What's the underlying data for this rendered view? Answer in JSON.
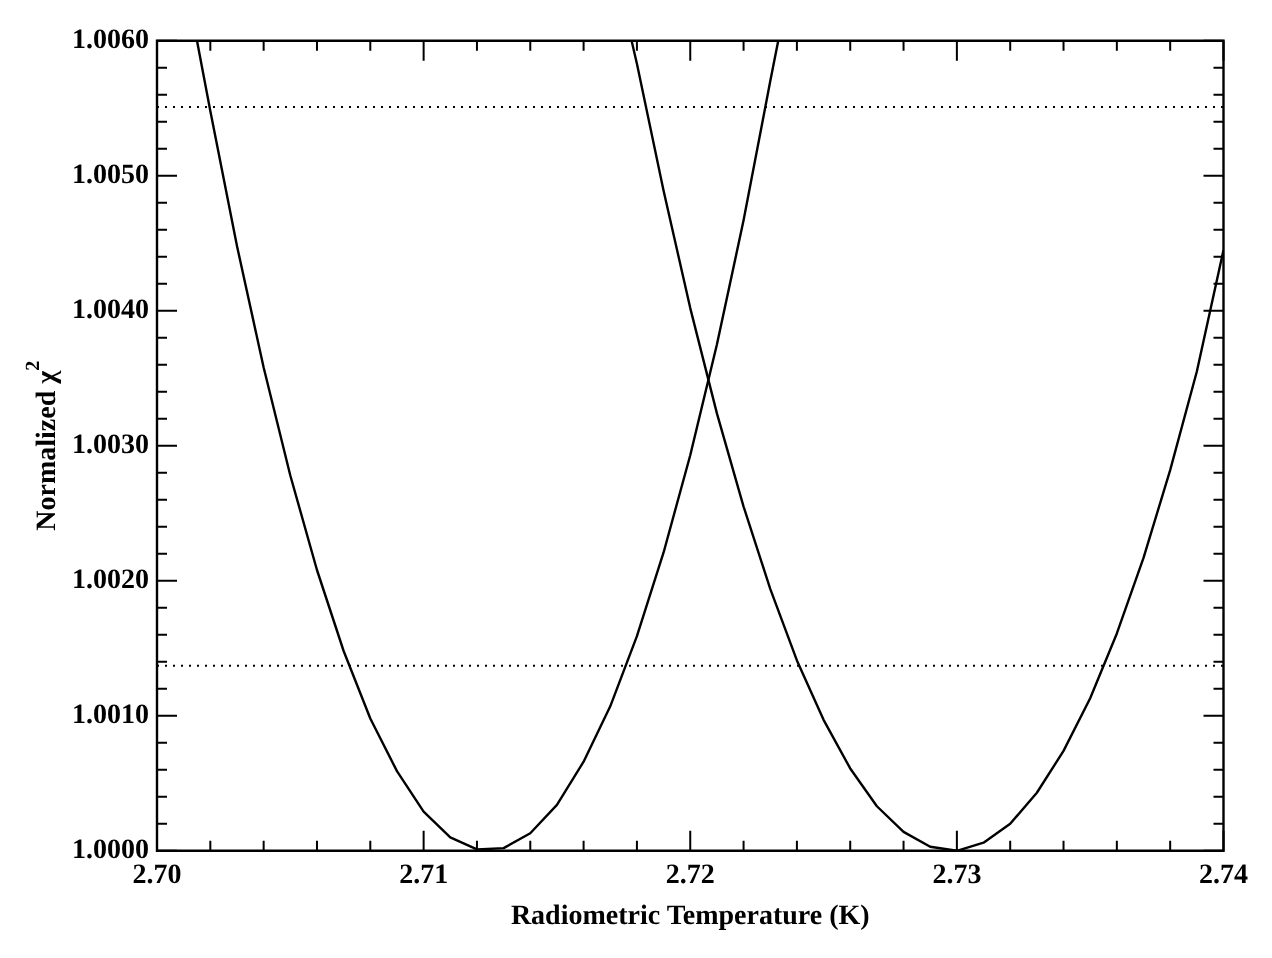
{
  "chart_data": {
    "type": "line",
    "xlabel": "Radiometric Temperature (K)",
    "ylabel": "Normalized χ$^{2}$",
    "series": [
      {
        "color": "#000000",
        "x": [
          2.7015,
          2.702,
          2.703,
          2.704,
          2.705,
          2.706,
          2.707,
          2.708,
          2.709,
          2.71,
          2.711,
          2.712,
          2.713,
          2.714,
          2.715,
          2.716,
          2.717,
          2.718,
          2.719,
          2.72,
          2.721,
          2.722,
          2.723,
          2.7233
        ],
        "values": [
          1.006,
          1.00548,
          1.00448,
          1.00358,
          1.00278,
          1.00208,
          1.00148,
          1.00098,
          1.00059,
          1.00029,
          1.0001,
          1.00001,
          1.00002,
          1.00013,
          1.00034,
          1.00066,
          1.00107,
          1.00159,
          1.00221,
          1.00293,
          1.00375,
          1.00467,
          1.0057,
          1.006
        ]
      },
      {
        "color": "#000000",
        "x": [
          2.7178,
          2.718,
          2.719,
          2.72,
          2.721,
          2.722,
          2.723,
          2.724,
          2.725,
          2.726,
          2.727,
          2.728,
          2.729,
          2.73,
          2.731,
          2.732,
          2.733,
          2.734,
          2.735,
          2.736,
          2.737,
          2.738,
          2.739,
          2.74
        ],
        "values": [
          1.006,
          1.00583,
          1.00489,
          1.00402,
          1.00324,
          1.00255,
          1.00194,
          1.00141,
          1.00097,
          1.00061,
          1.00033,
          1.00014,
          1.00003,
          1.0,
          1.00006,
          1.0002,
          1.00043,
          1.00074,
          1.00113,
          1.00161,
          1.00217,
          1.00282,
          1.00355,
          1.00445
        ]
      }
    ],
    "xlim": [
      2.7,
      2.74
    ],
    "ylim": [
      1.0,
      1.006
    ],
    "xticks": [
      {
        "value": 2.7,
        "label": "2.70"
      },
      {
        "value": 2.702,
        "label": null
      },
      {
        "value": 2.704,
        "label": null
      },
      {
        "value": 2.706,
        "label": null
      },
      {
        "value": 2.708,
        "label": null
      },
      {
        "value": 2.71,
        "label": "2.71"
      },
      {
        "value": 2.712,
        "label": null
      },
      {
        "value": 2.714,
        "label": null
      },
      {
        "value": 2.716,
        "label": null
      },
      {
        "value": 2.718,
        "label": null
      },
      {
        "value": 2.72,
        "label": "2.72"
      },
      {
        "value": 2.722,
        "label": null
      },
      {
        "value": 2.724,
        "label": null
      },
      {
        "value": 2.726,
        "label": null
      },
      {
        "value": 2.728,
        "label": null
      },
      {
        "value": 2.73,
        "label": "2.73"
      },
      {
        "value": 2.732,
        "label": null
      },
      {
        "value": 2.734,
        "label": null
      },
      {
        "value": 2.736,
        "label": null
      },
      {
        "value": 2.738,
        "label": null
      },
      {
        "value": 2.74,
        "label": "2.74"
      }
    ],
    "yticks": [
      {
        "value": 1.0,
        "label": "1.0000"
      },
      {
        "value": 1.0002,
        "label": null
      },
      {
        "value": 1.0004,
        "label": null
      },
      {
        "value": 1.0006,
        "label": null
      },
      {
        "value": 1.0008,
        "label": null
      },
      {
        "value": 1.001,
        "label": "1.0010"
      },
      {
        "value": 1.0012,
        "label": null
      },
      {
        "value": 1.0014,
        "label": null
      },
      {
        "value": 1.0016,
        "label": null
      },
      {
        "value": 1.0018,
        "label": null
      },
      {
        "value": 1.002,
        "label": "1.0020"
      },
      {
        "value": 1.0022,
        "label": null
      },
      {
        "value": 1.0024,
        "label": null
      },
      {
        "value": 1.0026,
        "label": null
      },
      {
        "value": 1.0028,
        "label": null
      },
      {
        "value": 1.003,
        "label": "1.0030"
      },
      {
        "value": 1.0032,
        "label": null
      },
      {
        "value": 1.0034,
        "label": null
      },
      {
        "value": 1.0036,
        "label": null
      },
      {
        "value": 1.0038,
        "label": null
      },
      {
        "value": 1.004,
        "label": "1.0040"
      },
      {
        "value": 1.0042,
        "label": null
      },
      {
        "value": 1.0044,
        "label": null
      },
      {
        "value": 1.0046,
        "label": null
      },
      {
        "value": 1.0048,
        "label": null
      },
      {
        "value": 1.005,
        "label": "1.0050"
      },
      {
        "value": 1.0052,
        "label": null
      },
      {
        "value": 1.0054,
        "label": null
      },
      {
        "value": 1.0056,
        "label": null
      },
      {
        "value": 1.0058,
        "label": null
      },
      {
        "value": 1.006,
        "label": "1.0060"
      }
    ],
    "ref_lines": [
      {
        "axis": "y",
        "value": 1.00551,
        "color": "#000000",
        "line_style": "dotted"
      },
      {
        "axis": "y",
        "value": 1.00137,
        "color": "#000000",
        "line_style": "dotted"
      }
    ],
    "grid": false,
    "legend": false,
    "marker": "none",
    "line_style": "solid"
  }
}
